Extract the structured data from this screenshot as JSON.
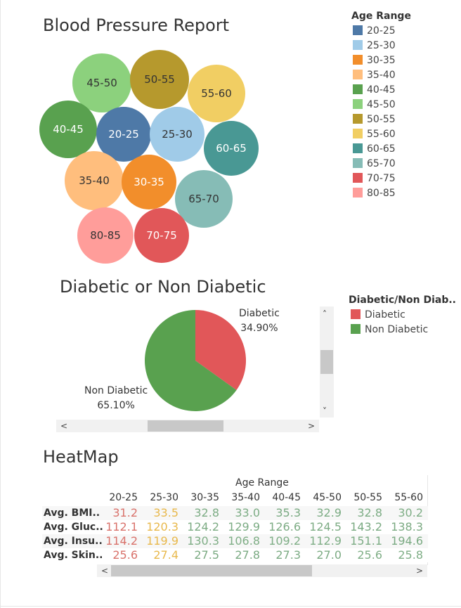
{
  "bubble_chart": {
    "title": "Blood Pressure Report",
    "legend_title": "Age Range",
    "legend": [
      {
        "label": "20-25",
        "color": "#4e79a7"
      },
      {
        "label": "25-30",
        "color": "#a0cbe8"
      },
      {
        "label": "30-35",
        "color": "#f28e2b"
      },
      {
        "label": "35-40",
        "color": "#ffbe7d"
      },
      {
        "label": "40-45",
        "color": "#59a14f"
      },
      {
        "label": "45-50",
        "color": "#8cd17d"
      },
      {
        "label": "50-55",
        "color": "#b6992d"
      },
      {
        "label": "55-60",
        "color": "#f1ce63"
      },
      {
        "label": "60-65",
        "color": "#499894"
      },
      {
        "label": "65-70",
        "color": "#86bcb6"
      },
      {
        "label": "70-75",
        "color": "#e15759"
      },
      {
        "label": "80-85",
        "color": "#ff9d9a"
      }
    ],
    "bubbles": [
      "45-50",
      "50-55",
      "55-60",
      "40-45",
      "20-25",
      "25-30",
      "60-65",
      "35-40",
      "30-35",
      "65-70",
      "80-85",
      "70-75"
    ]
  },
  "pie_chart": {
    "title": "Diabetic or Non Diabetic",
    "legend_title": "Diabetic/Non Diab..",
    "legend": [
      {
        "label": "Diabetic",
        "color": "#e15759"
      },
      {
        "label": "Non Diabetic",
        "color": "#59a14f"
      }
    ],
    "slices": [
      {
        "label": "Diabetic",
        "value_label": "34.90%",
        "color": "#e15759"
      },
      {
        "label": "Non Diabetic",
        "value_label": "65.10%",
        "color": "#59a14f"
      }
    ]
  },
  "chart_data": {
    "type": "pie",
    "categories": [
      "Diabetic",
      "Non Diabetic"
    ],
    "values": [
      34.9,
      65.1
    ],
    "title": "Diabetic or Non Diabetic"
  },
  "heatmap": {
    "title": "HeatMap",
    "column_group_label": "Age Range",
    "columns": [
      "20-25",
      "25-30",
      "30-35",
      "35-40",
      "40-45",
      "45-50",
      "50-55",
      "55-60"
    ],
    "rows": [
      {
        "label": "Avg. BMI..",
        "values": [
          "31.2",
          "33.5",
          "32.8",
          "33.0",
          "35.3",
          "32.9",
          "32.8",
          "30.2"
        ]
      },
      {
        "label": "Avg. Gluc..",
        "values": [
          "112.1",
          "120.3",
          "124.2",
          "129.9",
          "126.6",
          "124.5",
          "143.2",
          "138.3"
        ]
      },
      {
        "label": "Avg. Insu..",
        "values": [
          "114.2",
          "119.9",
          "130.3",
          "106.8",
          "109.2",
          "112.9",
          "151.1",
          "194.6"
        ]
      },
      {
        "label": "Avg. Skin..",
        "values": [
          "25.6",
          "27.4",
          "27.5",
          "27.8",
          "27.3",
          "27.0",
          "25.6",
          "25.8"
        ]
      }
    ],
    "color_low": "#d9726b",
    "color_mid": "#e8b84b",
    "color_high": "#7fae86"
  },
  "scroll_icons": {
    "up": "chevron-up-icon",
    "down": "chevron-down-icon",
    "left": "chevron-left-icon",
    "right": "chevron-right-icon"
  }
}
